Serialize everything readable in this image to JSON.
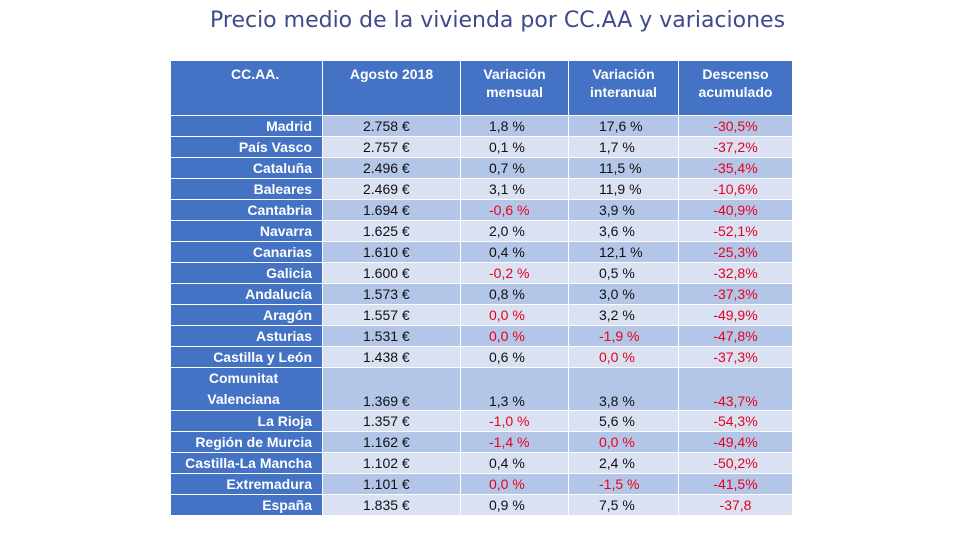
{
  "chart_data": {
    "type": "table",
    "title": "Precio medio de la vivienda por CC.AA y variaciones",
    "columns": [
      "CC.AA.",
      "Agosto 2018",
      "Variación mensual",
      "Variación interanual",
      "Descenso acumulado"
    ],
    "rows": [
      {
        "region": "Madrid",
        "price": "2.758 €",
        "monthly": "1,8 %",
        "yearly": "17,6 %",
        "accum": "-30,5%"
      },
      {
        "region": "País Vasco",
        "price": "2.757 €",
        "monthly": "0,1 %",
        "yearly": "1,7 %",
        "accum": "-37,2%"
      },
      {
        "region": "Cataluña",
        "price": "2.496 €",
        "monthly": "0,7 %",
        "yearly": "11,5 %",
        "accum": "-35,4%"
      },
      {
        "region": "Baleares",
        "price": "2.469 €",
        "monthly": "3,1 %",
        "yearly": "11,9 %",
        "accum": "-10,6%"
      },
      {
        "region": "Cantabria",
        "price": "1.694 €",
        "monthly": "-0,6 %",
        "yearly": "3,9 %",
        "accum": "-40,9%"
      },
      {
        "region": "Navarra",
        "price": "1.625 €",
        "monthly": "2,0 %",
        "yearly": "3,6 %",
        "accum": "-52,1%"
      },
      {
        "region": "Canarias",
        "price": "1.610 €",
        "monthly": "0,4 %",
        "yearly": "12,1 %",
        "accum": "-25,3%"
      },
      {
        "region": "Galicia",
        "price": "1.600 €",
        "monthly": "-0,2 %",
        "yearly": "0,5 %",
        "accum": "-32,8%"
      },
      {
        "region": "Andalucía",
        "price": "1.573 €",
        "monthly": "0,8 %",
        "yearly": "3,0 %",
        "accum": "-37,3%"
      },
      {
        "region": "Aragón",
        "price": "1.557 €",
        "monthly": "0,0 %",
        "yearly": "3,2 %",
        "accum": "-49,9%"
      },
      {
        "region": "Asturias",
        "price": "1.531 €",
        "monthly": "0,0 %",
        "yearly": "-1,9 %",
        "accum": "-47,8%"
      },
      {
        "region": "Castilla y León",
        "price": "1.438 €",
        "monthly": "0,6 %",
        "yearly": "0,0 %",
        "accum": "-37,3%"
      },
      {
        "region": "Comunitat Valenciana",
        "price": "1.369 €",
        "monthly": "1,3 %",
        "yearly": "3,8 %",
        "accum": "-43,7%"
      },
      {
        "region": "La Rioja",
        "price": "1.357 €",
        "monthly": "-1,0 %",
        "yearly": "5,6 %",
        "accum": "-54,3%"
      },
      {
        "region": "Región de Murcia",
        "price": "1.162 €",
        "monthly": "-1,4 %",
        "yearly": "0,0 %",
        "accum": "-49,4%"
      },
      {
        "region": "Castilla-La Mancha",
        "price": "1.102 €",
        "monthly": "0,4 %",
        "yearly": "2,4 %",
        "accum": "-50,2%"
      },
      {
        "region": "Extremadura",
        "price": "1.101 €",
        "monthly": "0,0 %",
        "yearly": "-1,5 %",
        "accum": "-41,5%"
      },
      {
        "region": "España",
        "price": "1.835 €",
        "monthly": "0,9 %",
        "yearly": "7,5 %",
        "accum": "-37,8"
      }
    ],
    "red_cells": {
      "monthly": [
        "Cantabria",
        "Galicia",
        "Aragón",
        "Asturias",
        "La Rioja",
        "Región de Murcia",
        "Extremadura"
      ],
      "yearly": [
        "Asturias",
        "Castilla y León",
        "Región de Murcia",
        "Extremadura"
      ],
      "accum": "all"
    },
    "colors": {
      "header_bg": "#4472c4",
      "row_odd": "#b4c6e7",
      "row_even": "#d9e1f2",
      "negative_text": "#e8001c",
      "title_text": "#3f4a8c"
    }
  }
}
